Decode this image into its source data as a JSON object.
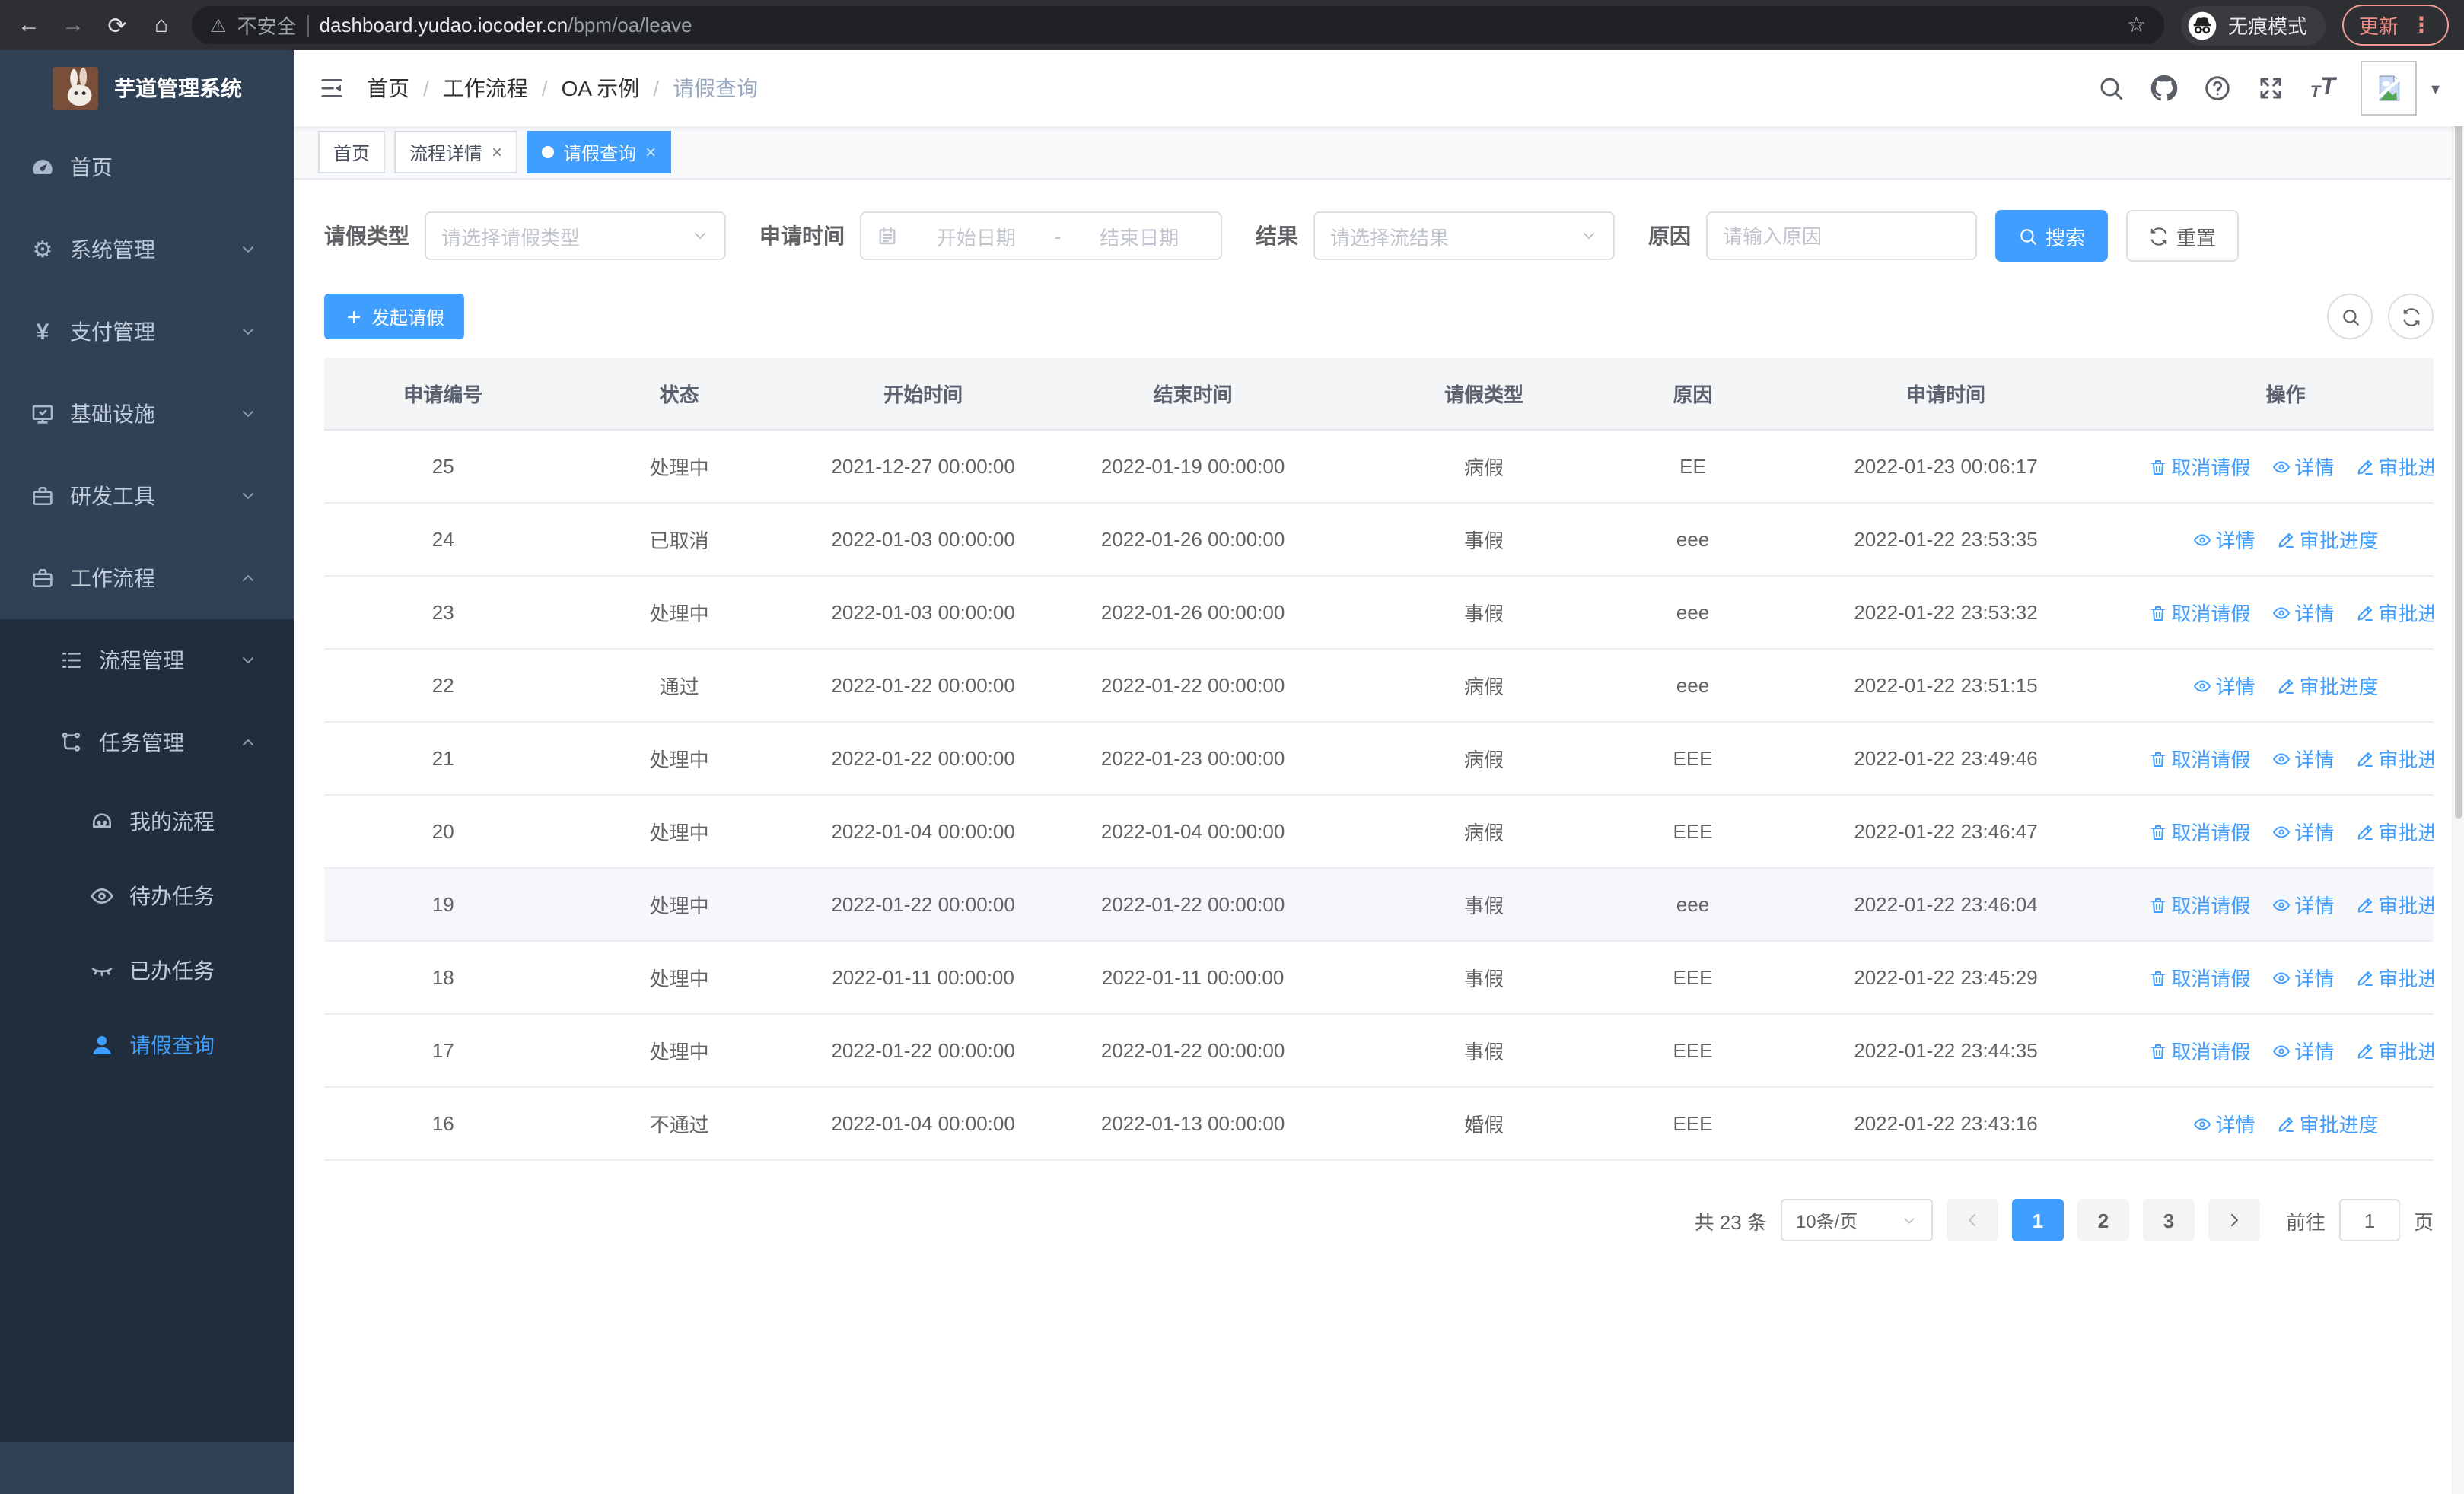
{
  "browser": {
    "security_label": "不安全",
    "url_host": "dashboard.yudao.iocoder.cn",
    "url_path": "/bpm/oa/leave",
    "incognito_label": "无痕模式",
    "update_label": "更新"
  },
  "sidebar": {
    "title": "芋道管理系统",
    "menu": [
      {
        "key": "home",
        "label": "首页",
        "icon": "dashboard-icon",
        "level": 1,
        "arrow": null,
        "sub": false,
        "active": false
      },
      {
        "key": "system",
        "label": "系统管理",
        "icon": "gear-icon",
        "level": 1,
        "arrow": "down",
        "sub": false,
        "active": false
      },
      {
        "key": "payment",
        "label": "支付管理",
        "icon": "yen-icon",
        "level": 1,
        "arrow": "down",
        "sub": false,
        "active": false
      },
      {
        "key": "infrastructure",
        "label": "基础设施",
        "icon": "monitor-icon",
        "level": 1,
        "arrow": "down",
        "sub": false,
        "active": false
      },
      {
        "key": "dev-tools",
        "label": "研发工具",
        "icon": "toolbox-icon",
        "level": 1,
        "arrow": "down",
        "sub": false,
        "active": false
      },
      {
        "key": "workflow",
        "label": "工作流程",
        "icon": "briefcase-icon",
        "level": 1,
        "arrow": "up",
        "sub": false,
        "active": false
      },
      {
        "key": "process-mgmt",
        "label": "流程管理",
        "icon": "list-tree-icon",
        "level": 2,
        "arrow": "down",
        "sub": true,
        "active": false
      },
      {
        "key": "task-mgmt",
        "label": "任务管理",
        "icon": "flow-icon",
        "level": 2,
        "arrow": "up",
        "sub": true,
        "active": false
      },
      {
        "key": "my-process",
        "label": "我的流程",
        "icon": "robot-icon",
        "level": 3,
        "arrow": null,
        "sub": true,
        "active": false
      },
      {
        "key": "todo-tasks",
        "label": "待办任务",
        "icon": "eye-open-icon",
        "level": 3,
        "arrow": null,
        "sub": true,
        "active": false
      },
      {
        "key": "done-tasks",
        "label": "已办任务",
        "icon": "eye-closed-icon",
        "level": 3,
        "arrow": null,
        "sub": true,
        "active": false
      },
      {
        "key": "leave-query",
        "label": "请假查询",
        "icon": "user-icon",
        "level": 3,
        "arrow": null,
        "sub": true,
        "active": true
      }
    ]
  },
  "header": {
    "breadcrumb": [
      "首页",
      "工作流程",
      "OA 示例",
      "请假查询"
    ],
    "right_icons": [
      {
        "key": "search",
        "icon": "search-icon"
      },
      {
        "key": "github",
        "icon": "github-icon"
      },
      {
        "key": "help",
        "icon": "question-icon"
      },
      {
        "key": "fullscreen",
        "icon": "fullscreen-icon"
      }
    ]
  },
  "tabs": [
    {
      "key": "home",
      "label": "首页",
      "closable": false,
      "active": false
    },
    {
      "key": "process-detail",
      "label": "流程详情",
      "closable": true,
      "active": false
    },
    {
      "key": "leave-query",
      "label": "请假查询",
      "closable": true,
      "active": true
    }
  ],
  "filters": {
    "leave_type_label": "请假类型",
    "leave_type_placeholder": "请选择请假类型",
    "apply_time_label": "申请时间",
    "date_start_placeholder": "开始日期",
    "date_separator": "-",
    "date_end_placeholder": "结束日期",
    "result_label": "结果",
    "result_placeholder": "请选择流结果",
    "reason_label": "原因",
    "reason_placeholder": "请输入原因",
    "search_label": "搜索",
    "reset_label": "重置"
  },
  "toolbar": {
    "create_label": "发起请假"
  },
  "table": {
    "columns": [
      "申请编号",
      "状态",
      "开始时间",
      "结束时间",
      "请假类型",
      "原因",
      "申请时间",
      "操作"
    ],
    "action_labels": {
      "cancel": "取消请假",
      "detail": "详情",
      "progress": "审批进度"
    },
    "rows": [
      {
        "id": "25",
        "status": "处理中",
        "start": "2021-12-27 00:00:00",
        "end": "2022-01-19 00:00:00",
        "type": "病假",
        "reason": "EE",
        "applied": "2022-01-23 00:06:17",
        "cancelable": true,
        "highlight": false
      },
      {
        "id": "24",
        "status": "已取消",
        "start": "2022-01-03 00:00:00",
        "end": "2022-01-26 00:00:00",
        "type": "事假",
        "reason": "eee",
        "applied": "2022-01-22 23:53:35",
        "cancelable": false,
        "highlight": false
      },
      {
        "id": "23",
        "status": "处理中",
        "start": "2022-01-03 00:00:00",
        "end": "2022-01-26 00:00:00",
        "type": "事假",
        "reason": "eee",
        "applied": "2022-01-22 23:53:32",
        "cancelable": true,
        "highlight": false
      },
      {
        "id": "22",
        "status": "通过",
        "start": "2022-01-22 00:00:00",
        "end": "2022-01-22 00:00:00",
        "type": "病假",
        "reason": "eee",
        "applied": "2022-01-22 23:51:15",
        "cancelable": false,
        "highlight": false
      },
      {
        "id": "21",
        "status": "处理中",
        "start": "2022-01-22 00:00:00",
        "end": "2022-01-23 00:00:00",
        "type": "病假",
        "reason": "EEE",
        "applied": "2022-01-22 23:49:46",
        "cancelable": true,
        "highlight": false
      },
      {
        "id": "20",
        "status": "处理中",
        "start": "2022-01-04 00:00:00",
        "end": "2022-01-04 00:00:00",
        "type": "病假",
        "reason": "EEE",
        "applied": "2022-01-22 23:46:47",
        "cancelable": true,
        "highlight": false
      },
      {
        "id": "19",
        "status": "处理中",
        "start": "2022-01-22 00:00:00",
        "end": "2022-01-22 00:00:00",
        "type": "事假",
        "reason": "eee",
        "applied": "2022-01-22 23:46:04",
        "cancelable": true,
        "highlight": true
      },
      {
        "id": "18",
        "status": "处理中",
        "start": "2022-01-11 00:00:00",
        "end": "2022-01-11 00:00:00",
        "type": "事假",
        "reason": "EEE",
        "applied": "2022-01-22 23:45:29",
        "cancelable": true,
        "highlight": false
      },
      {
        "id": "17",
        "status": "处理中",
        "start": "2022-01-22 00:00:00",
        "end": "2022-01-22 00:00:00",
        "type": "事假",
        "reason": "EEE",
        "applied": "2022-01-22 23:44:35",
        "cancelable": true,
        "highlight": false
      },
      {
        "id": "16",
        "status": "不通过",
        "start": "2022-01-04 00:00:00",
        "end": "2022-01-13 00:00:00",
        "type": "婚假",
        "reason": "EEE",
        "applied": "2022-01-22 23:43:16",
        "cancelable": false,
        "highlight": false
      }
    ]
  },
  "pagination": {
    "total_label": "共 23 条",
    "page_size": "10条/页",
    "pages": [
      "1",
      "2",
      "3"
    ],
    "active_page": "1",
    "goto_label": "前往",
    "goto_value": "1",
    "page_unit": "页"
  },
  "colors": {
    "accent": "#409eff",
    "sidebar_bg": "#304156",
    "submenu_bg": "#1f2d3d",
    "update_pill": "#f28b82"
  }
}
